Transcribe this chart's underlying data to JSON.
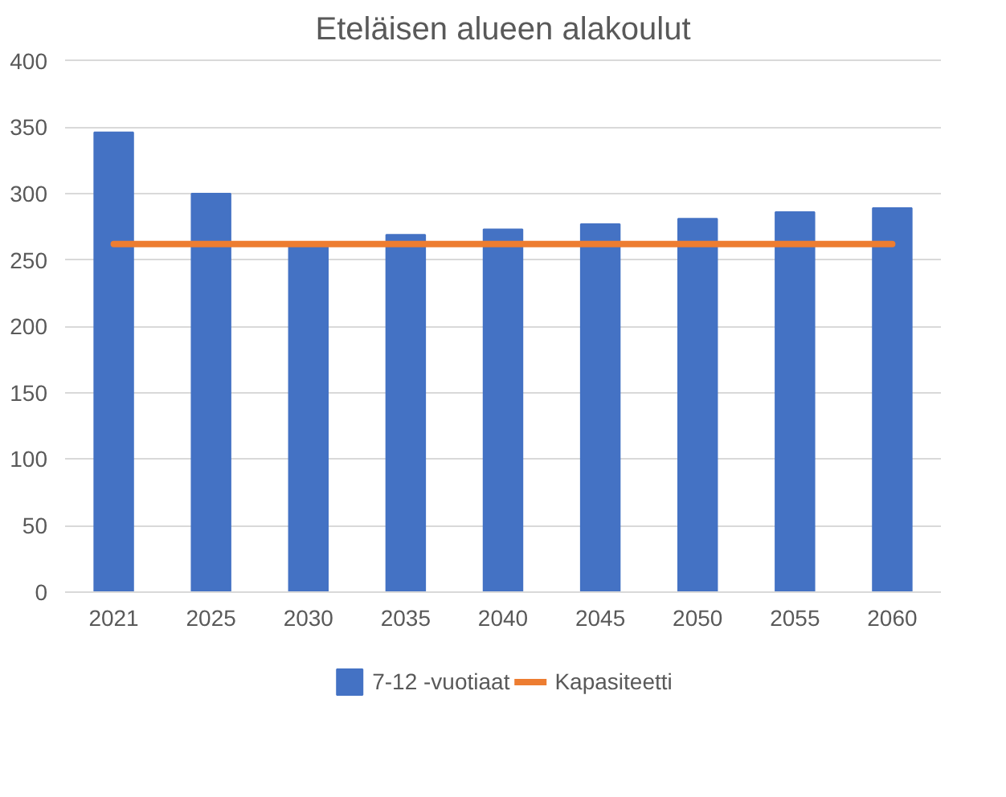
{
  "chart_data": {
    "type": "bar",
    "title": "Eteläisen alueen alakoulut",
    "categories": [
      "2021",
      "2025",
      "2030",
      "2035",
      "2040",
      "2045",
      "2050",
      "2055",
      "2060"
    ],
    "series": [
      {
        "name": "7-12 -vuotiaat",
        "color": "#4472c4",
        "values": [
          346,
          300,
          260,
          269,
          273,
          277,
          281,
          286,
          289
        ]
      },
      {
        "name": "Kapasiteetti",
        "type": "line",
        "color": "#ed7d31",
        "values": [
          262,
          262,
          262,
          262,
          262,
          262,
          262,
          262,
          262
        ]
      }
    ],
    "ylim": [
      0,
      400
    ],
    "yticks": [
      0,
      50,
      100,
      150,
      200,
      250,
      300,
      350,
      400
    ],
    "grid": "y",
    "legend": "bottom"
  }
}
